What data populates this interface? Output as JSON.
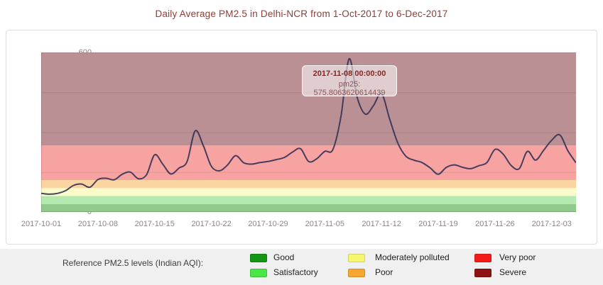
{
  "title": "Daily Average PM2.5 in Delhi-NCR from 1-Oct-2017 to 6-Dec-2017",
  "tooltip": {
    "date": "2017-11-08 00:00:00",
    "value_line": "pm25: 575.8063620614439"
  },
  "legend": {
    "heading": "Reference PM2.5 levels (Indian AQI):",
    "items": [
      {
        "label": "Good",
        "color": "#139613"
      },
      {
        "label": "Satisfactory",
        "color": "#47e747"
      },
      {
        "label": "Moderately polluted",
        "color": "#f7f76f"
      },
      {
        "label": "Poor",
        "color": "#f7a630"
      },
      {
        "label": "Very poor",
        "color": "#f31a1a"
      },
      {
        "label": "Severe",
        "color": "#8d1111"
      }
    ]
  },
  "chart_data": {
    "type": "line",
    "title": "Daily Average PM2.5 in Delhi-NCR from 1-Oct-2017 to 6-Dec-2017",
    "series_name": "pm25",
    "xlabel": "",
    "ylabel": "",
    "ylim": [
      0,
      600
    ],
    "yticks": [
      0,
      150,
      300,
      450,
      600
    ],
    "xtick_labels": [
      "2017-10-01",
      "2017-10-08",
      "2017-10-15",
      "2017-10-22",
      "2017-10-29",
      "2017-11-05",
      "2017-11-12",
      "2017-11-19",
      "2017-11-26",
      "2017-12-03"
    ],
    "grid": true,
    "legend_position": "bottom",
    "line_color": "rgba(52,50,84,0.9)",
    "highlighted_point": {
      "date": "2017-11-08",
      "value": 575.8063620614439
    },
    "bands": [
      {
        "label": "Good",
        "from": 0,
        "to": 30,
        "fill": "#92c98c"
      },
      {
        "label": "Satisfactory",
        "from": 30,
        "to": 60,
        "fill": "#b4eab0"
      },
      {
        "label": "Moderately polluted",
        "from": 60,
        "to": 90,
        "fill": "#fafbc9"
      },
      {
        "label": "Poor",
        "from": 90,
        "to": 120,
        "fill": "#fad5a2"
      },
      {
        "label": "Very poor",
        "from": 120,
        "to": 250,
        "fill": "#f7a3a1"
      },
      {
        "label": "Severe",
        "from": 250,
        "to": 600,
        "fill": "#ba9094"
      }
    ],
    "dates": [
      "2017-10-01",
      "2017-10-02",
      "2017-10-03",
      "2017-10-04",
      "2017-10-05",
      "2017-10-06",
      "2017-10-07",
      "2017-10-08",
      "2017-10-09",
      "2017-10-10",
      "2017-10-11",
      "2017-10-12",
      "2017-10-13",
      "2017-10-14",
      "2017-10-15",
      "2017-10-16",
      "2017-10-17",
      "2017-10-18",
      "2017-10-19",
      "2017-10-20",
      "2017-10-21",
      "2017-10-22",
      "2017-10-23",
      "2017-10-24",
      "2017-10-25",
      "2017-10-26",
      "2017-10-27",
      "2017-10-28",
      "2017-10-29",
      "2017-10-30",
      "2017-10-31",
      "2017-11-01",
      "2017-11-02",
      "2017-11-03",
      "2017-11-04",
      "2017-11-05",
      "2017-11-06",
      "2017-11-07",
      "2017-11-08",
      "2017-11-09",
      "2017-11-10",
      "2017-11-11",
      "2017-11-12",
      "2017-11-13",
      "2017-11-14",
      "2017-11-15",
      "2017-11-16",
      "2017-11-17",
      "2017-11-18",
      "2017-11-19",
      "2017-11-20",
      "2017-11-21",
      "2017-11-22",
      "2017-11-23",
      "2017-11-24",
      "2017-11-25",
      "2017-11-26",
      "2017-11-27",
      "2017-11-28",
      "2017-11-29",
      "2017-11-30",
      "2017-12-01",
      "2017-12-02",
      "2017-12-03",
      "2017-12-04",
      "2017-12-05",
      "2017-12-06"
    ],
    "values": [
      70,
      67,
      70,
      80,
      100,
      105,
      93,
      122,
      127,
      121,
      142,
      150,
      125,
      140,
      215,
      180,
      143,
      165,
      190,
      305,
      250,
      172,
      155,
      177,
      212,
      185,
      180,
      186,
      190,
      197,
      205,
      225,
      238,
      190,
      200,
      228,
      235,
      360,
      575.8063620614439,
      430,
      368,
      400,
      445,
      350,
      260,
      210,
      195,
      186,
      166,
      142,
      168,
      177,
      168,
      163,
      174,
      186,
      235,
      218,
      175,
      163,
      228,
      195,
      232,
      270,
      290,
      230,
      185
    ]
  }
}
